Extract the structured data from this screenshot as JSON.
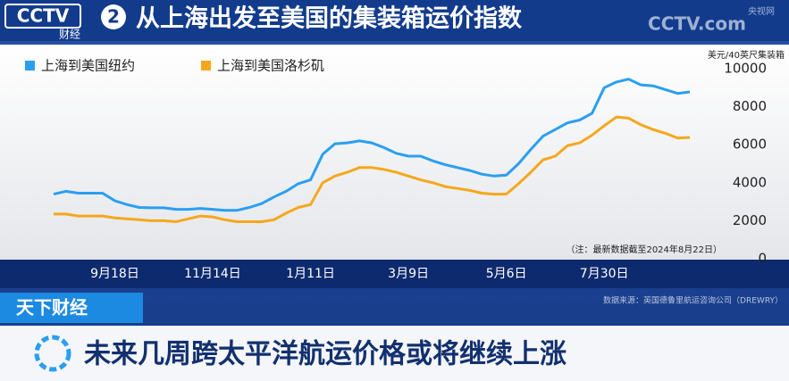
{
  "header": {
    "logo": "CCTV",
    "channel": "2",
    "channel_name": "财经",
    "title": "从上海出发至美国的集装箱运价指数",
    "watermark": "CCTV.com",
    "watermark_sub": "央视网"
  },
  "program": "天下财经",
  "source": "数据来源：英国德鲁里航运咨询公司（DREWRY）",
  "headline": "未来几周跨太平洋航运价格或将继续上涨",
  "chart_data": {
    "type": "line",
    "y_label": "美元/40英尺集装箱",
    "note": "（注：最新数据截至2024年8月22日）",
    "categories": [
      null,
      null,
      null,
      null,
      null,
      "9月18日",
      null,
      null,
      null,
      null,
      null,
      null,
      null,
      "11月14日",
      null,
      null,
      null,
      null,
      null,
      null,
      null,
      "1月11日",
      null,
      null,
      null,
      null,
      null,
      null,
      null,
      "3月9日",
      null,
      null,
      null,
      null,
      null,
      null,
      null,
      "5月6日",
      null,
      null,
      null,
      null,
      null,
      null,
      null,
      "7月30日",
      null,
      null,
      null,
      null,
      null,
      null,
      null
    ],
    "series": [
      {
        "name": "上海到美国纽约",
        "color": "#2a9ff0",
        "values": [
          3400,
          3550,
          3450,
          3450,
          3450,
          3050,
          2850,
          2700,
          2680,
          2680,
          2600,
          2600,
          2650,
          2600,
          2550,
          2550,
          2700,
          2900,
          3250,
          3550,
          3950,
          4150,
          5500,
          6050,
          6100,
          6200,
          6100,
          5850,
          5550,
          5400,
          5400,
          5150,
          4950,
          4800,
          4650,
          4450,
          4350,
          4400,
          5000,
          5750,
          6450,
          6800,
          7150,
          7300,
          7650,
          9000,
          9300,
          9450,
          9150,
          9100,
          8900,
          8700,
          8780
        ]
      },
      {
        "name": "上海到美国洛杉矶",
        "color": "#f5a71c",
        "values": [
          2350,
          2350,
          2250,
          2250,
          2250,
          2150,
          2100,
          2050,
          2000,
          2000,
          1950,
          2100,
          2250,
          2200,
          2050,
          1950,
          1950,
          1950,
          2050,
          2400,
          2700,
          2850,
          4000,
          4350,
          4550,
          4800,
          4800,
          4700,
          4550,
          4350,
          4150,
          4000,
          3800,
          3700,
          3600,
          3450,
          3400,
          3400,
          3950,
          4550,
          5200,
          5400,
          5950,
          6100,
          6500,
          7000,
          7450,
          7400,
          7050,
          6800,
          6600,
          6350,
          6380
        ]
      }
    ],
    "ylim": [
      0,
      10000
    ],
    "yticks": [
      0,
      2000,
      4000,
      6000,
      8000,
      10000
    ],
    "grid": false,
    "legend": "top-left"
  }
}
